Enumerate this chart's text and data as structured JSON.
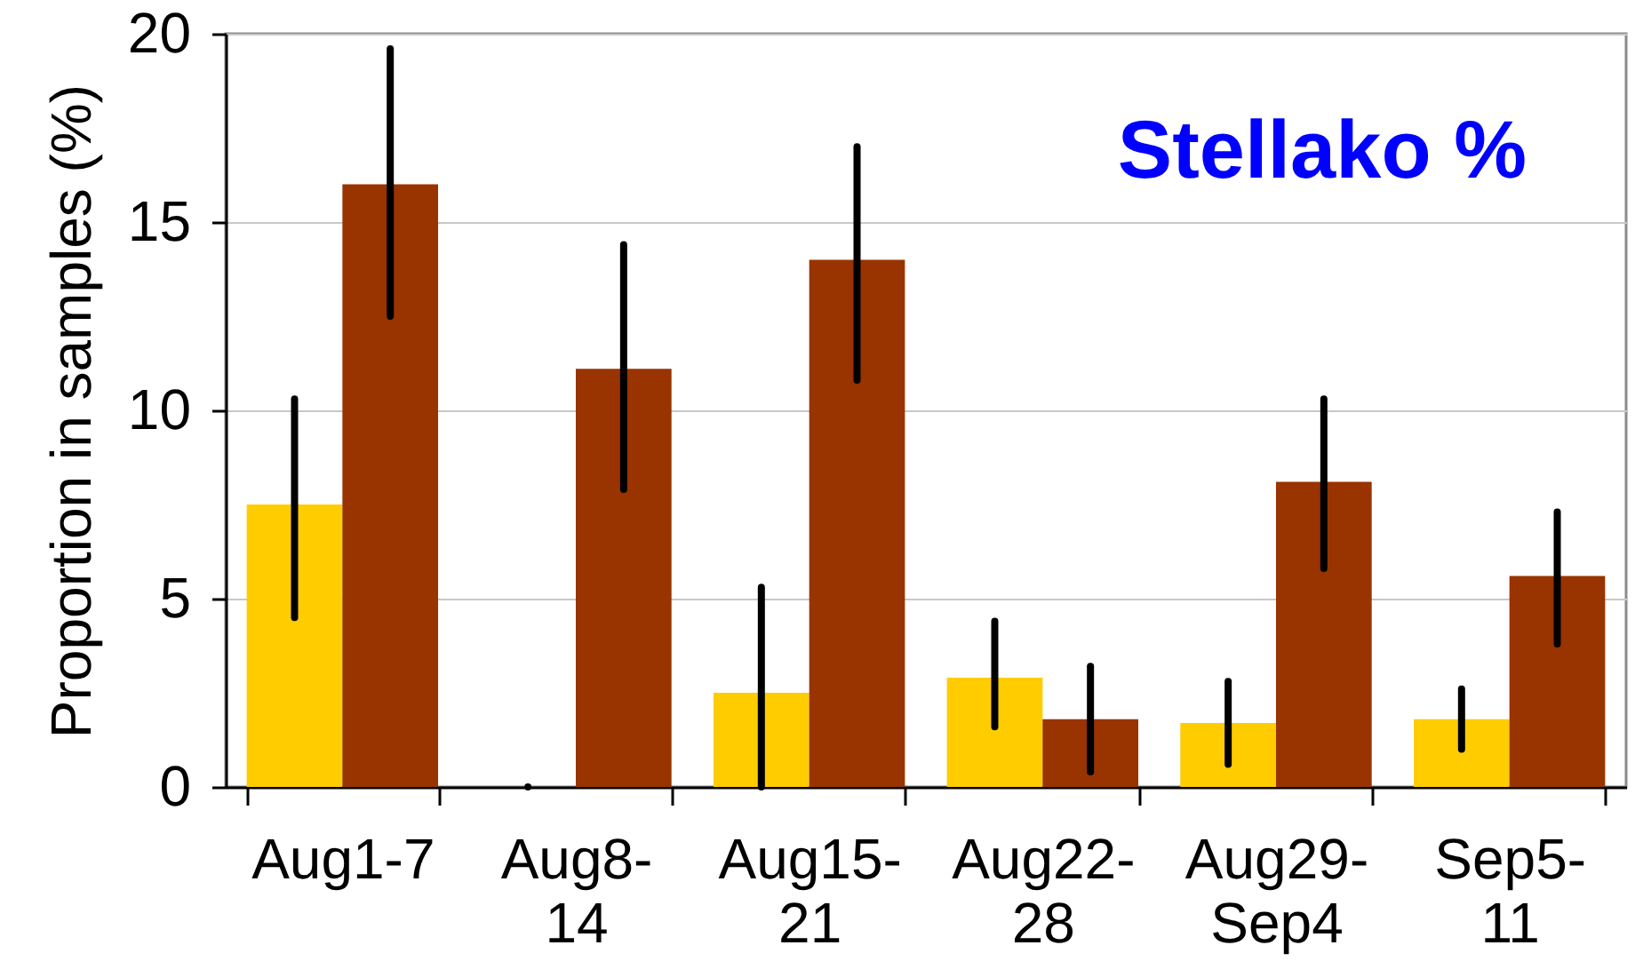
{
  "chart_data": {
    "type": "bar",
    "title": "Stellako %",
    "ylabel": "Proportion in samples (%)",
    "categories": [
      "Aug1-7",
      "Aug8-14",
      "Aug15-21",
      "Aug22-28",
      "Aug29-Sep4",
      "Sep5-11"
    ],
    "series": [
      {
        "color": "#ffcc00",
        "values": [
          7.5,
          0,
          2.5,
          2.9,
          1.7,
          1.8
        ],
        "errors": [
          [
            4.5,
            10.3
          ],
          0,
          [
            0,
            5.3
          ],
          [
            1.6,
            4.4
          ],
          [
            0.6,
            2.8
          ],
          [
            1.0,
            2.6
          ]
        ]
      },
      {
        "color": "#993300",
        "values": [
          16,
          11.1,
          14,
          1.8,
          8.1,
          5.6
        ],
        "errors": [
          [
            12.5,
            19.6
          ],
          [
            7.9,
            14.4
          ],
          [
            10.8,
            17
          ],
          [
            0.4,
            3.2
          ],
          [
            5.8,
            10.3
          ],
          [
            3.8,
            7.3
          ]
        ]
      }
    ],
    "ylim": [
      0,
      20
    ],
    "yticks": [
      0,
      5,
      10,
      15,
      20
    ],
    "grid": "y"
  }
}
